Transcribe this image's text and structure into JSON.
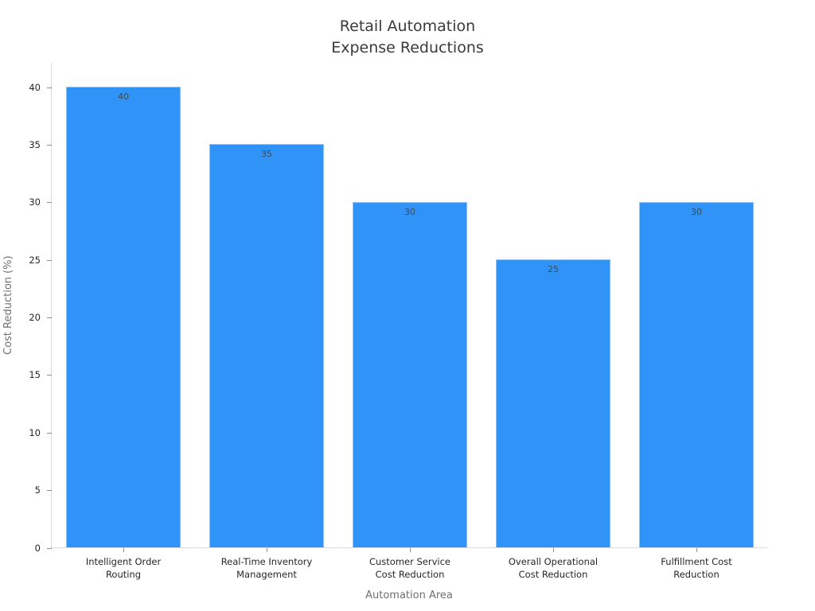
{
  "chart_data": {
    "type": "bar",
    "title": "Retail Automation\nExpense Reductions",
    "xlabel": "Automation Area",
    "ylabel": "Cost Reduction (%)",
    "categories": [
      "Intelligent Order\nRouting",
      "Real-Time Inventory\nManagement",
      "Customer Service\nCost Reduction",
      "Overall Operational\nCost Reduction",
      "Fulfillment Cost\nReduction"
    ],
    "values": [
      40,
      35,
      30,
      25,
      30
    ],
    "bar_labels": [
      "40",
      "35",
      "30",
      "25",
      "30"
    ],
    "ylim": [
      0,
      40
    ],
    "yticks": [
      0,
      5,
      10,
      15,
      20,
      25,
      30,
      35,
      40
    ],
    "grid": false,
    "legend_position": "none",
    "background_color": "#ffffff",
    "bar_color": "#2f93f7",
    "bar_label_color": "#3b4d5c",
    "title_color": "#3a3a3a",
    "tick_label_color": "#262626",
    "axis_title_color": "#707070",
    "spine_color": "#d9d9d9"
  }
}
